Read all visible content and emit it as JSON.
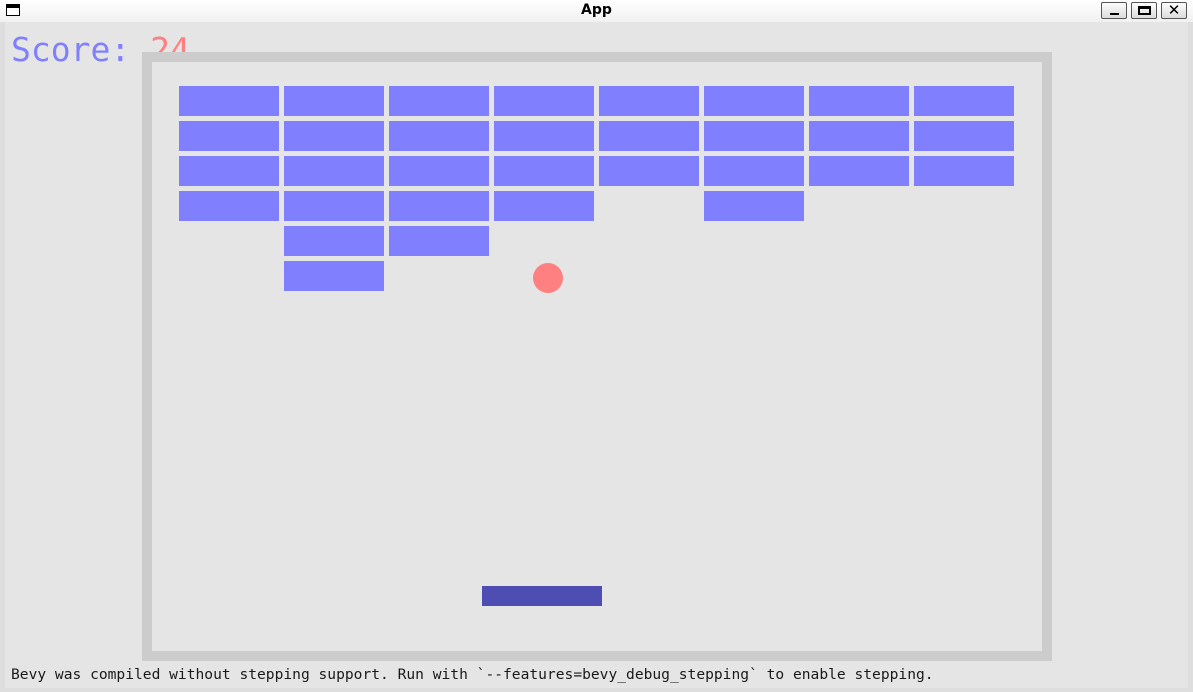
{
  "window": {
    "title": "App",
    "controls": {
      "minimize": "_",
      "maximize": "□",
      "close": "✕"
    }
  },
  "colors": {
    "brick": "#8080ff",
    "ball": "#ff8080",
    "paddle": "#4d4db3",
    "wall": "#cccccc",
    "background": "#e5e5e5",
    "score_label": "#8080ff",
    "score_value": "#ff8080"
  },
  "score": {
    "label": "Score: ",
    "value": "24"
  },
  "bricks": {
    "columns": 8,
    "rows": 6,
    "remaining": [
      [
        0,
        0
      ],
      [
        1,
        0
      ],
      [
        2,
        0
      ],
      [
        3,
        0
      ],
      [
        4,
        0
      ],
      [
        5,
        0
      ],
      [
        6,
        0
      ],
      [
        7,
        0
      ],
      [
        0,
        1
      ],
      [
        1,
        1
      ],
      [
        2,
        1
      ],
      [
        3,
        1
      ],
      [
        4,
        1
      ],
      [
        5,
        1
      ],
      [
        6,
        1
      ],
      [
        7,
        1
      ],
      [
        0,
        2
      ],
      [
        1,
        2
      ],
      [
        2,
        2
      ],
      [
        3,
        2
      ],
      [
        4,
        2
      ],
      [
        5,
        2
      ],
      [
        6,
        2
      ],
      [
        7,
        2
      ],
      [
        0,
        3
      ],
      [
        1,
        3
      ],
      [
        2,
        3
      ],
      [
        3,
        3
      ],
      [
        5,
        3
      ],
      [
        1,
        4
      ],
      [
        2,
        4
      ],
      [
        1,
        5
      ]
    ]
  },
  "status_message": "Bevy was compiled without stepping support. Run with `--features=bevy_debug_stepping` to enable stepping."
}
